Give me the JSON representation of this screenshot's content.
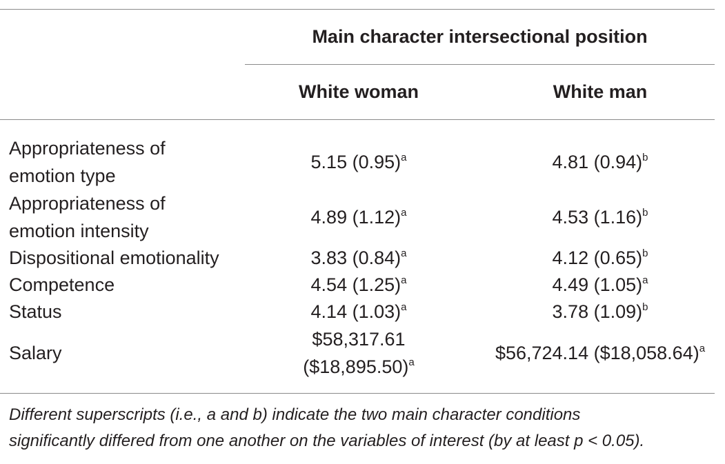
{
  "table": {
    "super_header": "Main character intersectional position",
    "columns": [
      "White woman",
      "White man"
    ],
    "rows": [
      {
        "label_lines": [
          "Appropriateness of",
          "emotion type"
        ],
        "woman": {
          "value": "5.15 (0.95)",
          "sup": "a"
        },
        "man": {
          "value": "4.81 (0.94)",
          "sup": "b"
        }
      },
      {
        "label_lines": [
          "Appropriateness of",
          "emotion intensity"
        ],
        "woman": {
          "value": "4.89 (1.12)",
          "sup": "a"
        },
        "man": {
          "value": "4.53 (1.16)",
          "sup": "b"
        }
      },
      {
        "label_lines": [
          "Dispositional emotionality"
        ],
        "woman": {
          "value": "3.83 (0.84)",
          "sup": "a"
        },
        "man": {
          "value": "4.12 (0.65)",
          "sup": "b"
        }
      },
      {
        "label_lines": [
          "Competence"
        ],
        "woman": {
          "value": "4.54 (1.25)",
          "sup": "a"
        },
        "man": {
          "value": "4.49 (1.05)",
          "sup": "a"
        }
      },
      {
        "label_lines": [
          "Status"
        ],
        "woman": {
          "value": "4.14 (1.03)",
          "sup": "a"
        },
        "man": {
          "value": "3.78 (1.09)",
          "sup": "b"
        }
      },
      {
        "label_lines": [
          "Salary"
        ],
        "woman": {
          "value_lines": [
            "$58,317.61",
            "($18,895.50)"
          ],
          "sup": "a"
        },
        "man": {
          "value": "$56,724.14 ($18,058.64)",
          "sup": "a"
        }
      }
    ],
    "note_lines": [
      "Different superscripts (i.e., a and b) indicate the two main character conditions",
      "significantly differed from one another on the variables of interest (by at least p < 0.05)."
    ]
  }
}
